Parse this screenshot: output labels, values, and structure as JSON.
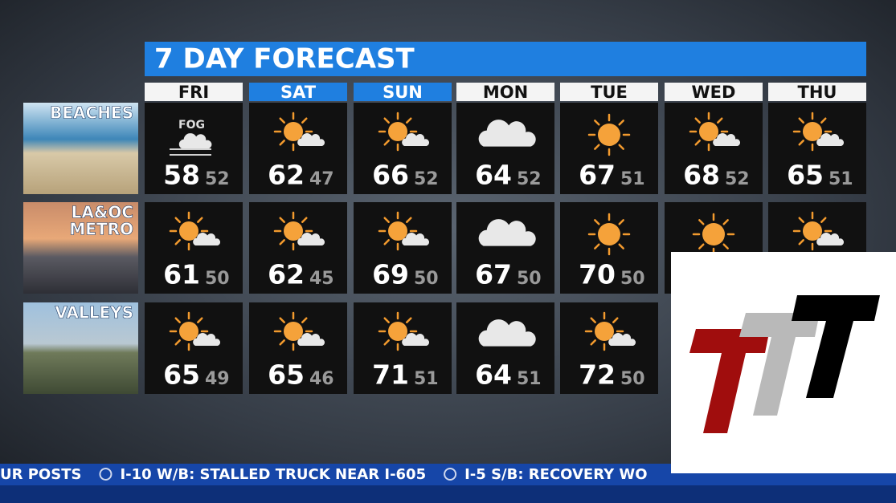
{
  "title": "7 DAY FORECAST",
  "days": [
    {
      "name": "FRI",
      "highlight": false
    },
    {
      "name": "SAT",
      "highlight": true
    },
    {
      "name": "SUN",
      "highlight": true
    },
    {
      "name": "MON",
      "highlight": false
    },
    {
      "name": "TUE",
      "highlight": false
    },
    {
      "name": "WED",
      "highlight": false
    },
    {
      "name": "THU",
      "highlight": false
    }
  ],
  "rows": [
    {
      "label": [
        "BEACHES"
      ],
      "scene": "beach",
      "cells": [
        {
          "icon": "fog",
          "note": "FOG",
          "hi": 58,
          "lo": 52
        },
        {
          "icon": "partly",
          "hi": 62,
          "lo": 47
        },
        {
          "icon": "partly",
          "hi": 66,
          "lo": 52
        },
        {
          "icon": "cloudy",
          "hi": 64,
          "lo": 52
        },
        {
          "icon": "sun",
          "hi": 67,
          "lo": 51
        },
        {
          "icon": "partly",
          "hi": 68,
          "lo": 52
        },
        {
          "icon": "partly",
          "hi": 65,
          "lo": 51
        }
      ]
    },
    {
      "label": [
        "LA&OC",
        "METRO"
      ],
      "scene": "city",
      "cells": [
        {
          "icon": "partly",
          "hi": 61,
          "lo": 50
        },
        {
          "icon": "partly",
          "hi": 62,
          "lo": 45
        },
        {
          "icon": "partly",
          "hi": 69,
          "lo": 50
        },
        {
          "icon": "cloudy",
          "hi": 67,
          "lo": 50
        },
        {
          "icon": "sun",
          "hi": 70,
          "lo": 50
        },
        {
          "icon": "sun"
        },
        {
          "icon": "partly"
        }
      ]
    },
    {
      "label": [
        "VALLEYS"
      ],
      "scene": "valley",
      "cells": [
        {
          "icon": "partly",
          "hi": 65,
          "lo": 49
        },
        {
          "icon": "partly",
          "hi": 65,
          "lo": 46
        },
        {
          "icon": "partly",
          "hi": 71,
          "lo": 51
        },
        {
          "icon": "cloudy",
          "hi": 64,
          "lo": 51
        },
        {
          "icon": "partly",
          "hi": 72,
          "lo": 50
        }
      ]
    }
  ],
  "ticker": [
    "UR POSTS",
    "I-10 W/B: STALLED TRUCK NEAR I-605",
    "I-5 S/B: RECOVERY WO"
  ]
}
